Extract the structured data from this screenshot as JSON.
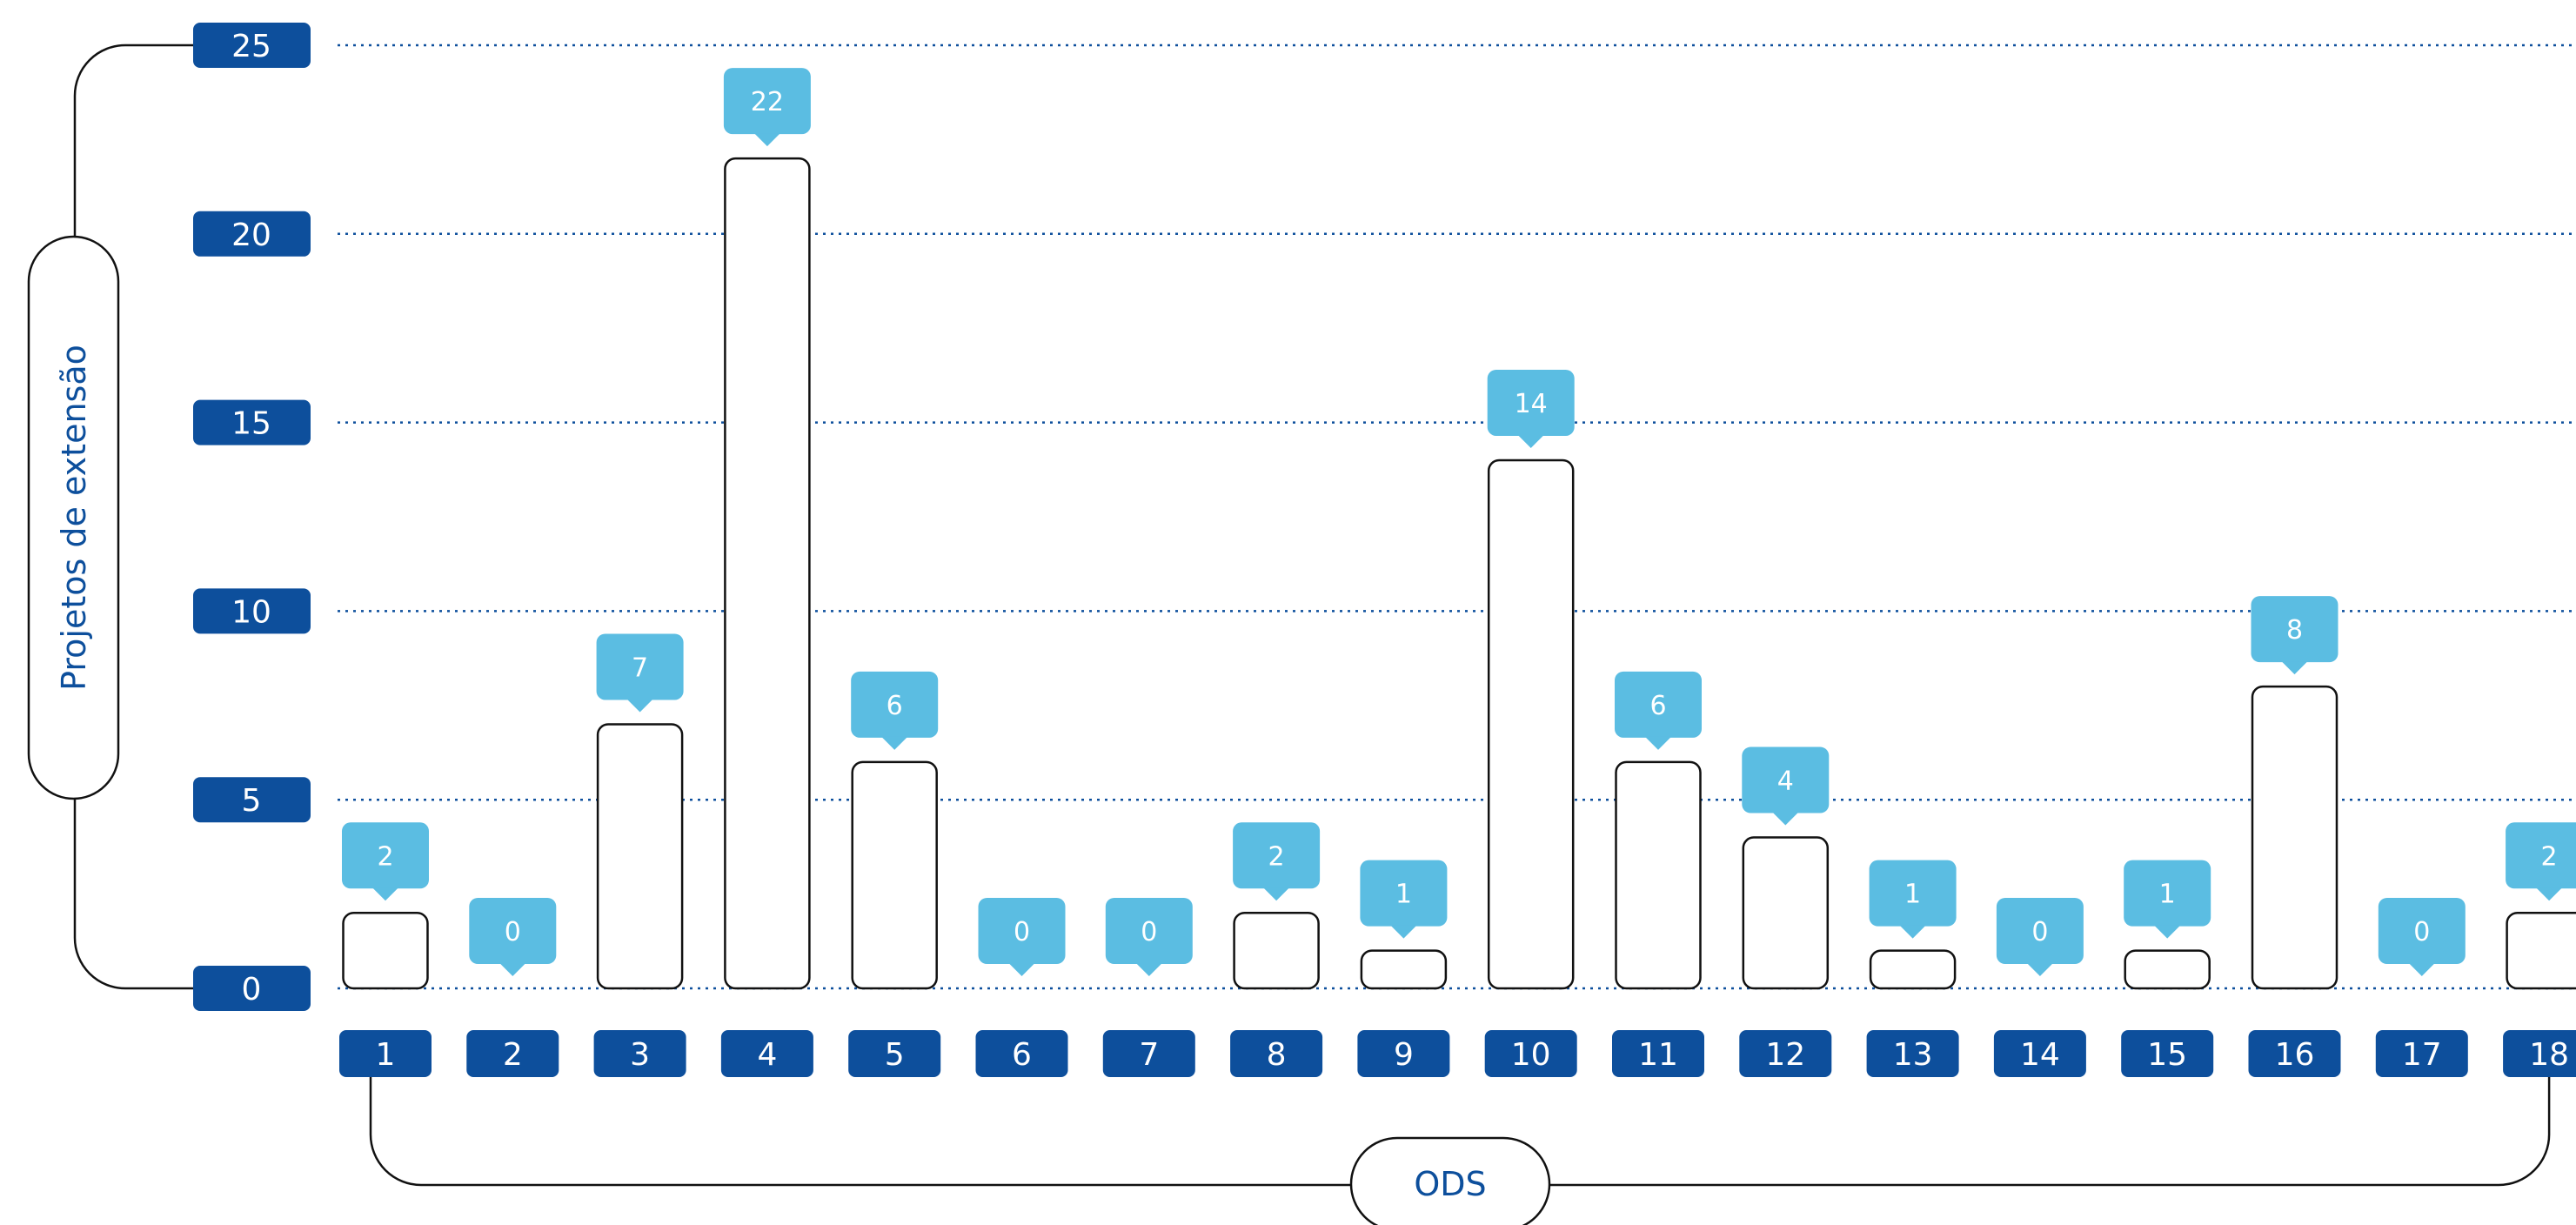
{
  "colors": {
    "ticks": "#0d4f9c",
    "callout": "#5bbde2",
    "bar_stroke": "#111111",
    "grid": "#0d4f9c",
    "bracket": "#111111",
    "axis_title": "#0d4f9c"
  },
  "chart_data": {
    "type": "bar",
    "ylabel": "Projetos de extensão",
    "xlabel": "ODS",
    "ylim": [
      0,
      25
    ],
    "yticks": [
      "0",
      "5",
      "10",
      "15",
      "20",
      "25"
    ],
    "categories": [
      "1",
      "2",
      "3",
      "4",
      "5",
      "6",
      "7",
      "8",
      "9",
      "10",
      "11",
      "12",
      "13",
      "14",
      "15",
      "16",
      "17",
      "18"
    ],
    "values": [
      2,
      0,
      7,
      22,
      6,
      0,
      0,
      2,
      1,
      14,
      6,
      4,
      1,
      0,
      1,
      8,
      0,
      2
    ],
    "grid": true
  }
}
